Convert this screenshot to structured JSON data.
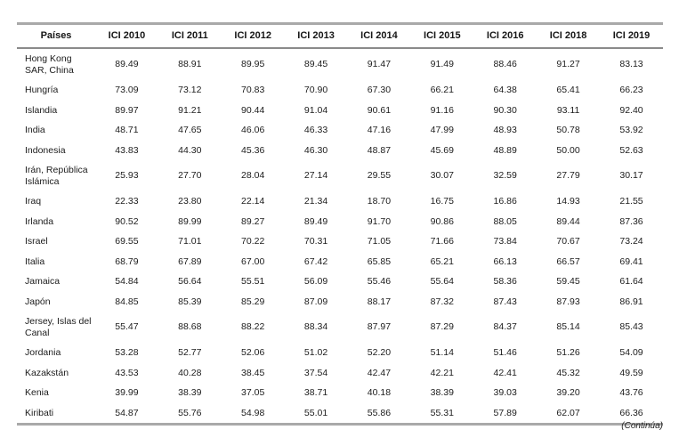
{
  "table": {
    "columns": [
      "Países",
      "ICI 2010",
      "ICI 2011",
      "ICI 2012",
      "ICI 2013",
      "ICI 2014",
      "ICI 2015",
      "ICI 2016",
      "ICI 2018",
      "ICI 2019"
    ],
    "rows": [
      {
        "country": "Hong Kong SAR, China",
        "values": [
          "89.49",
          "88.91",
          "89.95",
          "89.45",
          "91.47",
          "91.49",
          "88.46",
          "91.27",
          "83.13"
        ]
      },
      {
        "country": "Hungría",
        "values": [
          "73.09",
          "73.12",
          "70.83",
          "70.90",
          "67.30",
          "66.21",
          "64.38",
          "65.41",
          "66.23"
        ]
      },
      {
        "country": "Islandia",
        "values": [
          "89.97",
          "91.21",
          "90.44",
          "91.04",
          "90.61",
          "91.16",
          "90.30",
          "93.11",
          "92.40"
        ]
      },
      {
        "country": "India",
        "values": [
          "48.71",
          "47.65",
          "46.06",
          "46.33",
          "47.16",
          "47.99",
          "48.93",
          "50.78",
          "53.92"
        ]
      },
      {
        "country": "Indonesia",
        "values": [
          "43.83",
          "44.30",
          "45.36",
          "46.30",
          "48.87",
          "45.69",
          "48.89",
          "50.00",
          "52.63"
        ]
      },
      {
        "country": "Irán, República Islámica",
        "values": [
          "25.93",
          "27.70",
          "28.04",
          "27.14",
          "29.55",
          "30.07",
          "32.59",
          "27.79",
          "30.17"
        ]
      },
      {
        "country": "Iraq",
        "values": [
          "22.33",
          "23.80",
          "22.14",
          "21.34",
          "18.70",
          "16.75",
          "16.86",
          "14.93",
          "21.55"
        ]
      },
      {
        "country": "Irlanda",
        "values": [
          "90.52",
          "89.99",
          "89.27",
          "89.49",
          "91.70",
          "90.86",
          "88.05",
          "89.44",
          "87.36"
        ]
      },
      {
        "country": "Israel",
        "values": [
          "69.55",
          "71.01",
          "70.22",
          "70.31",
          "71.05",
          "71.66",
          "73.84",
          "70.67",
          "73.24"
        ]
      },
      {
        "country": "Italia",
        "values": [
          "68.79",
          "67.89",
          "67.00",
          "67.42",
          "65.85",
          "65.21",
          "66.13",
          "66.57",
          "69.41"
        ]
      },
      {
        "country": "Jamaica",
        "values": [
          "54.84",
          "56.64",
          "55.51",
          "56.09",
          "55.46",
          "55.64",
          "58.36",
          "59.45",
          "61.64"
        ]
      },
      {
        "country": "Japón",
        "values": [
          "84.85",
          "85.39",
          "85.29",
          "87.09",
          "88.17",
          "87.32",
          "87.43",
          "87.93",
          "86.91"
        ]
      },
      {
        "country": "Jersey, Islas del Canal",
        "values": [
          "55.47",
          "88.68",
          "88.22",
          "88.34",
          "87.97",
          "87.29",
          "84.37",
          "85.14",
          "85.43"
        ]
      },
      {
        "country": "Jordania",
        "values": [
          "53.28",
          "52.77",
          "52.06",
          "51.02",
          "52.20",
          "51.14",
          "51.46",
          "51.26",
          "54.09"
        ]
      },
      {
        "country": "Kazakstán",
        "values": [
          "43.53",
          "40.28",
          "38.45",
          "37.54",
          "42.47",
          "42.21",
          "42.41",
          "45.32",
          "49.59"
        ]
      },
      {
        "country": "Kenia",
        "values": [
          "39.99",
          "38.39",
          "37.05",
          "38.71",
          "40.18",
          "38.39",
          "39.03",
          "39.20",
          "43.76"
        ]
      },
      {
        "country": "Kiribati",
        "values": [
          "54.87",
          "55.76",
          "54.98",
          "55.01",
          "55.86",
          "55.31",
          "57.89",
          "62.07",
          "66.36"
        ]
      }
    ]
  },
  "footer": {
    "note": "(Continúa)"
  },
  "style_tokens": {
    "rule_color": "#a9a9a9",
    "header_rule_color": "#8a8a8a",
    "text_color": "#1c1c1c",
    "background_color": "#ffffff"
  }
}
